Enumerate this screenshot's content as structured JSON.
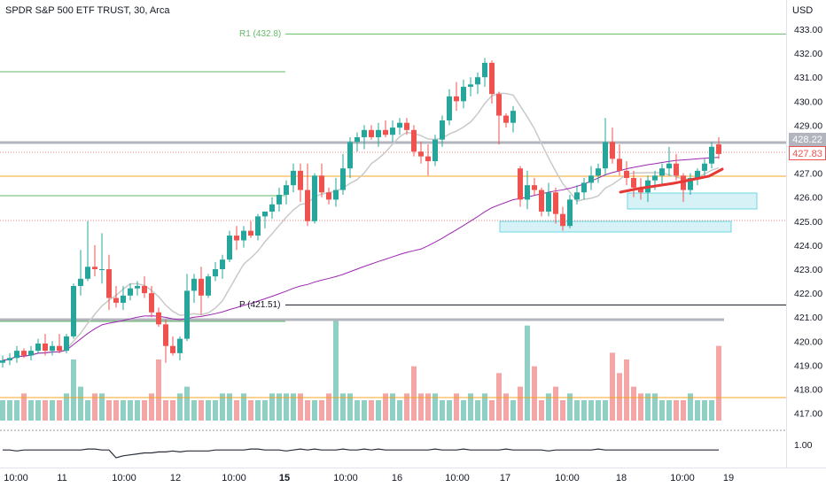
{
  "header": {
    "symbol": "SPDR S&P 500 ETF TRUST, 30, Arca"
  },
  "currency": "USD",
  "colors": {
    "up": "#26a69a",
    "down": "#ef5350",
    "vol_up": "#8fcfc4",
    "vol_down": "#f4a6a6",
    "ma_fast": "#c9c9c9",
    "ma_slow": "#9c27b0",
    "level_gray": "#b2b5be",
    "orange": "#f5a623",
    "green_level": "#66bb6a",
    "dotted_red": "#ef5350",
    "highlight_fill": "#d7f2f7",
    "highlight_stroke": "#4dd0e1"
  },
  "price_tags": [
    {
      "label": "428.22",
      "style": "gray"
    },
    {
      "label": "427.83",
      "style": "red"
    }
  ],
  "levels": [
    {
      "label": "R1 (432.8)",
      "value": 432.8
    },
    {
      "label": "P (421.51)",
      "value": 421.51
    }
  ],
  "chart_data": {
    "type": "candlestick",
    "price_axis": {
      "ticks": [
        433.0,
        432.0,
        431.0,
        430.0,
        429.0,
        428.0,
        427.0,
        426.0,
        425.0,
        424.0,
        423.0,
        422.0,
        421.0,
        420.0,
        419.0,
        418.0,
        417.0
      ]
    },
    "indicator_axis": {
      "ticks": [
        "1.00"
      ]
    },
    "time_axis": [
      "10:00",
      "11",
      "10:00",
      "12",
      "10:00",
      "15",
      "10:00",
      "16",
      "10:00",
      "17",
      "10:00",
      "18",
      "10:00",
      "19"
    ],
    "candles": [
      [
        419.1,
        419.4,
        418.9,
        419.2
      ],
      [
        419.2,
        419.5,
        419.0,
        419.3
      ],
      [
        419.3,
        419.8,
        419.1,
        419.6
      ],
      [
        419.6,
        419.7,
        419.3,
        419.4
      ],
      [
        419.4,
        419.8,
        419.2,
        419.6
      ],
      [
        419.6,
        420.1,
        419.5,
        419.9
      ],
      [
        419.9,
        420.3,
        419.4,
        419.6
      ],
      [
        419.6,
        420.0,
        419.4,
        419.8
      ],
      [
        419.8,
        420.3,
        419.5,
        419.6
      ],
      [
        419.6,
        420.3,
        419.5,
        420.2
      ],
      [
        420.2,
        422.4,
        420.1,
        422.3
      ],
      [
        422.3,
        423.8,
        421.9,
        422.6
      ],
      [
        422.6,
        425.0,
        422.5,
        423.1
      ],
      [
        423.1,
        424.0,
        422.7,
        423.0
      ],
      [
        423.0,
        424.5,
        422.4,
        423.0
      ],
      [
        423.0,
        423.6,
        421.3,
        421.8
      ],
      [
        421.8,
        422.3,
        421.4,
        421.6
      ],
      [
        421.6,
        422.3,
        421.3,
        421.9
      ],
      [
        421.9,
        422.4,
        421.7,
        422.2
      ],
      [
        422.2,
        422.5,
        421.9,
        422.3
      ],
      [
        422.3,
        422.7,
        421.8,
        422.0
      ],
      [
        422.0,
        422.3,
        421.0,
        421.2
      ],
      [
        421.2,
        421.4,
        420.6,
        420.7
      ],
      [
        420.7,
        420.9,
        419.1,
        419.8
      ],
      [
        419.8,
        420.2,
        419.4,
        419.5
      ],
      [
        419.5,
        420.2,
        419.2,
        420.1
      ],
      [
        420.1,
        422.8,
        420.0,
        422.1
      ],
      [
        422.1,
        422.8,
        421.6,
        422.6
      ],
      [
        422.6,
        423.1,
        421.1,
        421.9
      ],
      [
        421.9,
        422.8,
        421.8,
        422.7
      ],
      [
        422.7,
        423.3,
        422.5,
        423.0
      ],
      [
        423.0,
        423.6,
        422.6,
        423.4
      ],
      [
        423.4,
        424.6,
        423.3,
        424.4
      ],
      [
        424.4,
        424.8,
        423.8,
        424.2
      ],
      [
        424.2,
        424.8,
        423.9,
        424.6
      ],
      [
        424.6,
        425.0,
        424.3,
        424.4
      ],
      [
        424.4,
        425.3,
        424.2,
        425.2
      ],
      [
        425.2,
        425.4,
        424.7,
        425.4
      ],
      [
        425.4,
        426.0,
        425.1,
        425.7
      ],
      [
        425.7,
        426.4,
        425.4,
        426.1
      ],
      [
        426.1,
        426.7,
        425.7,
        426.5
      ],
      [
        426.5,
        427.4,
        426.2,
        427.1
      ],
      [
        427.1,
        427.4,
        425.8,
        426.3
      ],
      [
        426.3,
        427.4,
        424.8,
        425.0
      ],
      [
        425.0,
        427.0,
        424.9,
        426.9
      ],
      [
        426.9,
        427.4,
        426.0,
        426.2
      ],
      [
        426.2,
        426.4,
        425.7,
        425.9
      ],
      [
        425.9,
        426.8,
        425.6,
        426.3
      ],
      [
        426.3,
        427.8,
        426.1,
        427.2
      ],
      [
        427.2,
        428.5,
        426.8,
        428.3
      ],
      [
        428.3,
        428.7,
        427.9,
        428.5
      ],
      [
        428.5,
        429.0,
        428.0,
        428.8
      ],
      [
        428.8,
        429.0,
        428.4,
        428.5
      ],
      [
        428.5,
        429.1,
        428.1,
        428.8
      ],
      [
        428.8,
        429.2,
        428.5,
        428.6
      ],
      [
        428.6,
        429.2,
        428.3,
        428.9
      ],
      [
        428.9,
        429.3,
        428.6,
        429.1
      ],
      [
        429.1,
        429.3,
        428.6,
        428.8
      ],
      [
        428.8,
        429.0,
        427.7,
        427.9
      ],
      [
        427.9,
        428.3,
        427.4,
        427.7
      ],
      [
        427.7,
        428.2,
        426.9,
        427.5
      ],
      [
        427.5,
        428.6,
        427.3,
        428.4
      ],
      [
        428.4,
        429.4,
        428.1,
        429.2
      ],
      [
        429.2,
        430.5,
        429.0,
        430.2
      ],
      [
        430.2,
        430.8,
        429.6,
        430.0
      ],
      [
        430.0,
        430.9,
        429.7,
        430.6
      ],
      [
        430.6,
        431.0,
        430.2,
        430.7
      ],
      [
        430.7,
        431.2,
        430.3,
        431.0
      ],
      [
        431.0,
        431.8,
        430.6,
        431.6
      ],
      [
        431.6,
        431.7,
        429.9,
        430.3
      ],
      [
        430.3,
        430.4,
        428.2,
        429.4
      ],
      [
        429.4,
        429.5,
        428.9,
        429.1
      ],
      [
        429.1,
        429.8,
        428.7,
        429.6
      ],
      [
        427.2,
        427.3,
        425.6,
        425.9
      ],
      [
        425.9,
        427.1,
        425.5,
        426.5
      ],
      [
        426.5,
        426.8,
        426.1,
        426.3
      ],
      [
        426.3,
        426.4,
        425.2,
        425.4
      ],
      [
        425.4,
        426.6,
        425.2,
        426.2
      ],
      [
        426.2,
        426.4,
        424.9,
        425.3
      ],
      [
        425.3,
        425.6,
        424.6,
        424.8
      ],
      [
        424.8,
        426.1,
        424.7,
        425.9
      ],
      [
        425.9,
        426.5,
        425.7,
        426.2
      ],
      [
        426.2,
        426.8,
        425.9,
        426.6
      ],
      [
        426.6,
        427.3,
        426.3,
        426.9
      ],
      [
        426.9,
        427.4,
        426.6,
        427.2
      ],
      [
        427.2,
        429.3,
        426.9,
        428.3
      ],
      [
        428.3,
        428.9,
        427.4,
        427.6
      ],
      [
        427.6,
        428.2,
        426.9,
        427.1
      ],
      [
        427.1,
        427.5,
        426.5,
        426.8
      ],
      [
        426.8,
        427.1,
        426.0,
        426.4
      ],
      [
        426.4,
        426.8,
        425.9,
        426.2
      ],
      [
        426.2,
        426.9,
        425.8,
        426.7
      ],
      [
        426.7,
        427.1,
        426.3,
        426.9
      ],
      [
        426.9,
        427.4,
        426.5,
        427.2
      ],
      [
        427.2,
        428.1,
        426.9,
        427.4
      ],
      [
        427.4,
        427.8,
        426.7,
        426.9
      ],
      [
        426.9,
        427.0,
        425.8,
        426.3
      ],
      [
        426.3,
        427.0,
        426.1,
        426.8
      ],
      [
        426.8,
        427.2,
        426.5,
        427.1
      ],
      [
        427.1,
        427.6,
        426.8,
        427.4
      ],
      [
        427.4,
        428.3,
        427.2,
        428.1
      ],
      [
        428.2,
        428.5,
        427.6,
        427.8
      ]
    ],
    "volume": [
      3,
      3,
      3,
      4,
      3,
      3,
      3,
      3,
      3,
      4,
      9,
      5,
      3,
      4,
      4,
      3,
      3,
      3,
      3,
      3,
      3,
      4,
      9,
      3,
      3,
      4,
      5,
      3,
      3,
      3,
      3,
      4,
      4,
      3,
      4,
      3,
      3,
      3,
      4,
      4,
      4,
      4,
      4,
      3,
      3,
      3,
      4,
      15,
      4,
      4,
      3,
      3,
      3,
      3,
      4,
      4,
      3,
      4,
      8,
      4,
      4,
      4,
      3,
      3,
      4,
      3,
      4,
      3,
      4,
      3,
      7,
      4,
      3,
      5,
      14,
      8,
      3,
      4,
      5,
      3,
      4,
      3,
      3,
      3,
      3,
      3,
      10,
      7,
      9,
      5,
      4,
      4,
      4,
      3,
      3,
      3,
      3,
      4,
      3,
      3,
      3,
      11
    ],
    "volume_axis": {
      "max": 15
    },
    "indicator": [
      0.98,
      0.98,
      0.97,
      0.98,
      0.98,
      0.98,
      0.98,
      0.98,
      0.98,
      0.98,
      0.98,
      0.98,
      0.99,
      0.99,
      0.98,
      0.98,
      0.9,
      0.92,
      0.93,
      0.94,
      0.95,
      0.95,
      0.96,
      0.96,
      0.97,
      0.96,
      0.97,
      0.97,
      0.97,
      0.97,
      0.98,
      0.98,
      0.98,
      0.98,
      0.98,
      0.99,
      0.99,
      0.98,
      0.98,
      0.98,
      0.97,
      0.98,
      0.99,
      0.98,
      0.99,
      0.98,
      0.98,
      0.98,
      0.99,
      0.98,
      0.98,
      0.99,
      0.98,
      0.99,
      0.98,
      0.98,
      0.98,
      0.98,
      0.98,
      0.98,
      0.98,
      0.99,
      0.98,
      0.98,
      0.98,
      0.99,
      0.98,
      0.98,
      0.98,
      0.98,
      0.98,
      0.99,
      0.98,
      0.98,
      0.98,
      0.98,
      0.98,
      0.97,
      0.98,
      0.98,
      0.98,
      0.98,
      0.98,
      0.98,
      0.99,
      0.98,
      0.98,
      0.98,
      0.98,
      0.98,
      0.98,
      0.98,
      0.98,
      0.98,
      0.98,
      0.98,
      0.98,
      0.98,
      0.98,
      0.98,
      0.98,
      0.98
    ]
  }
}
